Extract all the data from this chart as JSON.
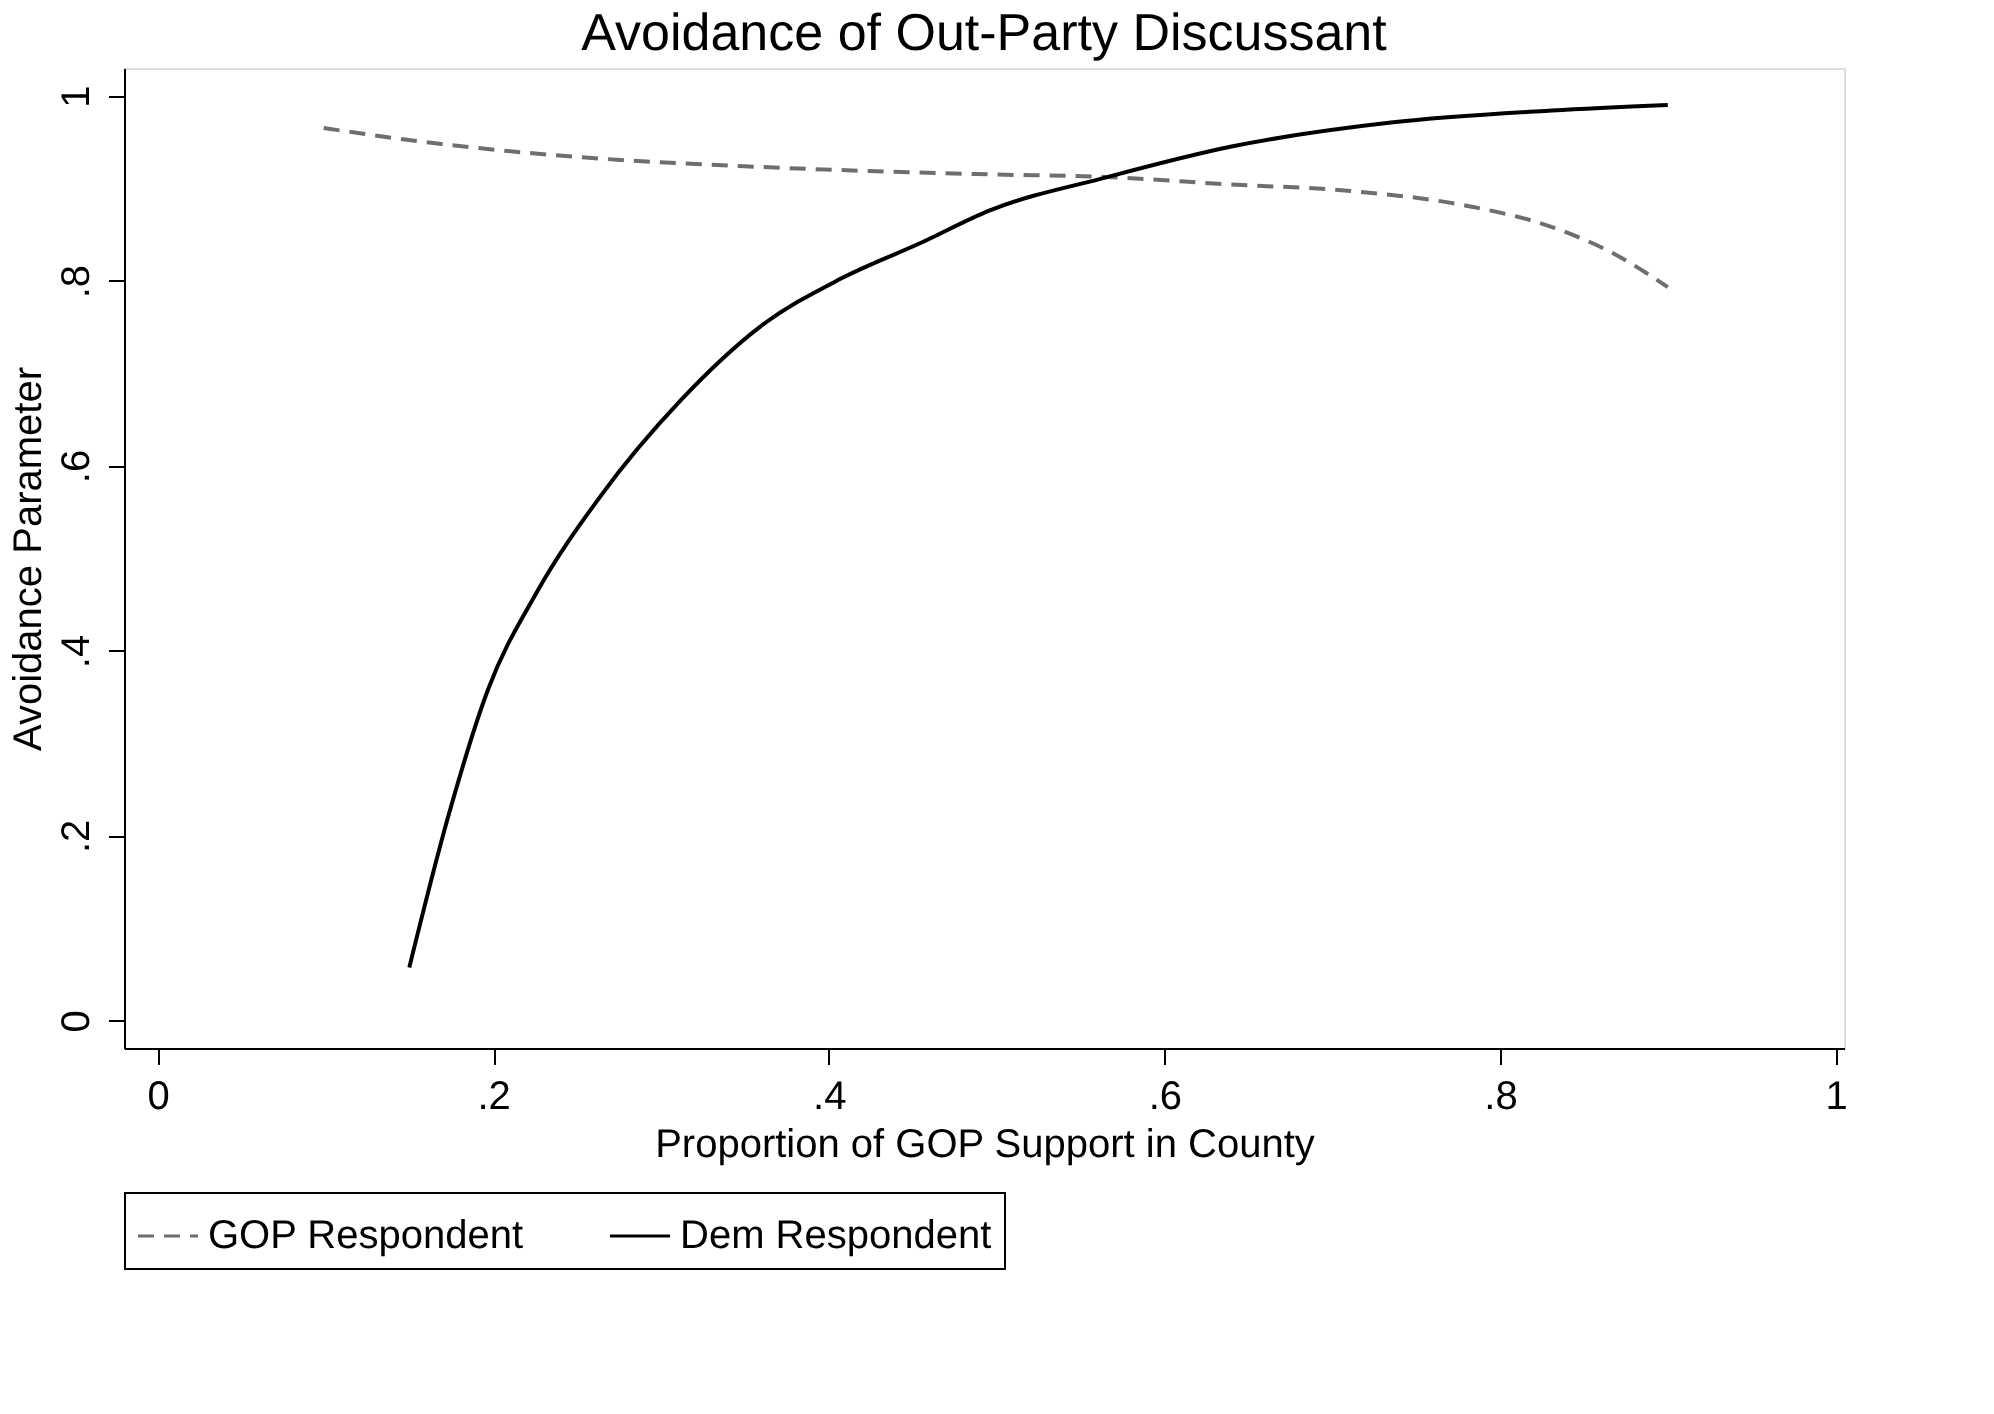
{
  "chart_data": {
    "type": "line",
    "title": "Avoidance of Out-Party Discussant",
    "xlabel": "Proportion of GOP Support in County",
    "ylabel": "Avoidance Parameter",
    "xlim": [
      -0.02,
      1.005
    ],
    "ylim": [
      -0.03,
      1.03
    ],
    "xticks": [
      0,
      {
        "value": 0.2,
        "label": ".2"
      },
      {
        "value": 0.4,
        "label": ".4"
      },
      {
        "value": 0.6,
        "label": ".6"
      },
      {
        "value": 0.8,
        "label": ".8"
      },
      1
    ],
    "yticks": [
      0,
      {
        "value": 0.2,
        "label": ".2"
      },
      {
        "value": 0.4,
        "label": ".4"
      },
      {
        "value": 0.6,
        "label": ".6"
      },
      {
        "value": 0.8,
        "label": ".8"
      },
      1
    ],
    "grid": false,
    "legend": "bottom",
    "marker": "none",
    "series": [
      {
        "name": "GOP Respondent",
        "color": "#6e6e6e",
        "line_style": "dashed",
        "x": [
          0.099,
          0.168,
          0.264,
          0.359,
          0.494,
          0.566,
          0.64,
          0.711,
          0.783,
          0.831,
          0.869,
          0.9
        ],
        "values": [
          0.965,
          0.948,
          0.932,
          0.923,
          0.915,
          0.912,
          0.904,
          0.897,
          0.88,
          0.858,
          0.828,
          0.793
        ]
      },
      {
        "name": "Dem Respondent",
        "color": "#000000",
        "line_style": "solid",
        "x": [
          0.15,
          0.173,
          0.197,
          0.226,
          0.264,
          0.312,
          0.359,
          0.407,
          0.455,
          0.496,
          0.566,
          0.64,
          0.735,
          0.831,
          0.9
        ],
        "values": [
          0.057,
          0.219,
          0.358,
          0.463,
          0.567,
          0.671,
          0.75,
          0.802,
          0.841,
          0.876,
          0.912,
          0.945,
          0.971,
          0.984,
          0.99
        ]
      }
    ]
  }
}
